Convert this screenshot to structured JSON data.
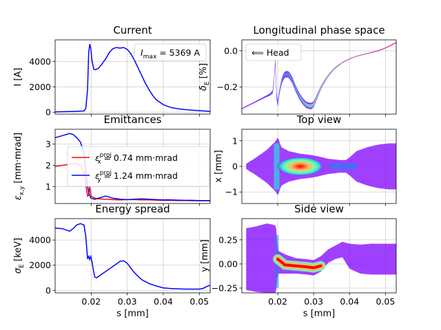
{
  "figure": {
    "background": "#ffffff"
  },
  "chart_data": [
    {
      "id": "current",
      "type": "line",
      "title": "Current",
      "ylabel": "I [A]",
      "xlim": [
        0.01,
        0.053
      ],
      "ylim": [
        -150,
        5700
      ],
      "yticks": [
        0,
        2000,
        4000
      ],
      "ytick_labels": [
        "0",
        "2000",
        "4000"
      ],
      "xticks": [
        0.02,
        0.03,
        0.04,
        0.05
      ],
      "show_xticklabels": false,
      "grid": true,
      "annotation": {
        "text": "I_max = 5369 A",
        "position": "top-right"
      },
      "series": [
        {
          "color": "#0000ff",
          "x": [
            0.01,
            0.015,
            0.018,
            0.0185,
            0.019,
            0.0193,
            0.0196,
            0.0199,
            0.0202,
            0.0207,
            0.0212,
            0.022,
            0.023,
            0.024,
            0.025,
            0.026,
            0.027,
            0.028,
            0.029,
            0.03,
            0.031,
            0.032,
            0.033,
            0.034,
            0.035,
            0.036,
            0.037,
            0.038,
            0.04,
            0.042,
            0.044,
            0.046,
            0.048,
            0.05,
            0.052,
            0.053
          ],
          "y": [
            30,
            60,
            100,
            300,
            1800,
            4700,
            5369,
            5000,
            4100,
            3400,
            3350,
            3450,
            3800,
            4200,
            4700,
            5000,
            5100,
            5050,
            5100,
            4950,
            4600,
            4100,
            3500,
            2900,
            2300,
            1800,
            1350,
            1000,
            600,
            380,
            280,
            210,
            160,
            120,
            90,
            70
          ]
        }
      ]
    },
    {
      "id": "longitudinal",
      "type": "scatter",
      "title": "Longitudinal phase space",
      "ylabel": "δ_E [%]",
      "xlim": [
        0.01,
        0.053
      ],
      "ylim": [
        -0.35,
        0.06
      ],
      "yticks": [
        0.0,
        -0.2
      ],
      "ytick_labels": [
        "0.0",
        "−0.2"
      ],
      "xticks": [
        0.02,
        0.03,
        0.04,
        0.05
      ],
      "show_xticklabels": false,
      "grid": true,
      "legend": {
        "entries": [
          "⟸ Head"
        ],
        "position": "top-left"
      },
      "series": [
        {
          "colormap": "rainbow",
          "x": [
            0.01,
            0.013,
            0.016,
            0.018,
            0.0188,
            0.0193,
            0.0197,
            0.02,
            0.0205,
            0.0212,
            0.022,
            0.023,
            0.024,
            0.025,
            0.026,
            0.027,
            0.028,
            0.029,
            0.0295,
            0.03,
            0.0305,
            0.031,
            0.032,
            0.033,
            0.034,
            0.035,
            0.036,
            0.037,
            0.038,
            0.04,
            0.042,
            0.044,
            0.046,
            0.048,
            0.05,
            0.052,
            0.053
          ],
          "y": [
            -0.32,
            -0.29,
            -0.26,
            -0.24,
            -0.22,
            -0.05,
            -0.26,
            -0.3,
            -0.22,
            -0.16,
            -0.13,
            -0.13,
            -0.16,
            -0.21,
            -0.25,
            -0.28,
            -0.3,
            -0.305,
            -0.305,
            -0.295,
            -0.275,
            -0.25,
            -0.205,
            -0.17,
            -0.14,
            -0.115,
            -0.095,
            -0.08,
            -0.065,
            -0.045,
            -0.03,
            -0.02,
            -0.01,
            0.0,
            0.015,
            0.035,
            0.045
          ],
          "band_width": [
            0.005,
            0.006,
            0.008,
            0.012,
            0.02,
            0.04,
            0.04,
            0.03,
            0.025,
            0.03,
            0.035,
            0.035,
            0.035,
            0.035,
            0.035,
            0.035,
            0.035,
            0.035,
            0.035,
            0.03,
            0.028,
            0.025,
            0.02,
            0.015,
            0.012,
            0.01,
            0.009,
            0.008,
            0.007,
            0.006,
            0.005,
            0.005,
            0.005,
            0.005,
            0.005,
            0.005,
            0.005
          ]
        }
      ]
    },
    {
      "id": "emittances",
      "type": "line",
      "title": "Emittances",
      "ylabel": "ε_x,y [mm·mrad]",
      "xlim": [
        0.01,
        0.053
      ],
      "ylim": [
        0.2,
        3.7
      ],
      "yticks": [
        1,
        2,
        3
      ],
      "ytick_labels": [
        "1",
        "2",
        "3"
      ],
      "xticks": [
        0.02,
        0.03,
        0.04,
        0.05
      ],
      "show_xticklabels": false,
      "grid": true,
      "legend": {
        "position": "center-left",
        "entries": [
          "ε_x^proj = 0.74 mm·mrad",
          "ε_y^proj = 1.24 mm·mrad"
        ]
      },
      "series": [
        {
          "name": "ε_x^proj = 0.74 mm·mrad",
          "color": "#ff0000",
          "x": [
            0.01,
            0.012,
            0.014,
            0.016,
            0.017,
            0.018,
            0.0185,
            0.019,
            0.0193,
            0.0196,
            0.02,
            0.021,
            0.022,
            0.024,
            0.026,
            0.028,
            0.03,
            0.032,
            0.034,
            0.036,
            0.038,
            0.04,
            0.042,
            0.044,
            0.046,
            0.048,
            0.05,
            0.052,
            0.053
          ],
          "y": [
            1.95,
            2.0,
            2.05,
            2.1,
            2.0,
            1.7,
            1.1,
            0.55,
            0.6,
            1.0,
            0.55,
            0.45,
            0.42,
            0.4,
            0.38,
            0.37,
            0.38,
            0.38,
            0.37,
            0.37,
            0.36,
            0.35,
            0.35,
            0.34,
            0.34,
            0.33,
            0.33,
            0.33,
            0.32
          ]
        },
        {
          "name": "ε_y^proj = 1.24 mm·mrad",
          "color": "#0000ff",
          "x": [
            0.01,
            0.012,
            0.014,
            0.015,
            0.016,
            0.017,
            0.018,
            0.0185,
            0.019,
            0.0195,
            0.02,
            0.021,
            0.022,
            0.024,
            0.026,
            0.028,
            0.03,
            0.032,
            0.034,
            0.036,
            0.038,
            0.04,
            0.042,
            0.044,
            0.046,
            0.048,
            0.05,
            0.052,
            0.053
          ],
          "y": [
            3.3,
            3.4,
            3.5,
            3.45,
            3.3,
            3.1,
            2.6,
            1.8,
            1.0,
            0.6,
            0.45,
            0.4,
            0.45,
            0.55,
            0.45,
            0.4,
            0.38,
            0.4,
            0.42,
            0.4,
            0.38,
            0.37,
            0.37,
            0.36,
            0.35,
            0.35,
            0.34,
            0.34,
            0.33
          ]
        }
      ]
    },
    {
      "id": "topview",
      "type": "heatmap",
      "title": "Top view",
      "ylabel": "x [mm]",
      "xlim": [
        0.01,
        0.053
      ],
      "ylim": [
        -1.45,
        1.45
      ],
      "yticks": [
        1,
        0,
        -1
      ],
      "ytick_labels": [
        "1",
        "0",
        "−1"
      ],
      "xticks": [
        0.02,
        0.03,
        0.04,
        0.05
      ],
      "show_xticklabels": false,
      "grid": true,
      "colormap": "rainbow",
      "envelope": {
        "x": [
          0.0112,
          0.014,
          0.017,
          0.0195,
          0.02,
          0.021,
          0.023,
          0.026,
          0.029,
          0.031,
          0.034,
          0.037,
          0.039,
          0.04,
          0.042,
          0.045,
          0.048,
          0.051,
          0.053
        ],
        "half_width": [
          0.1,
          0.35,
          0.65,
          1.0,
          1.15,
          0.75,
          0.6,
          0.5,
          0.45,
          0.4,
          0.3,
          0.25,
          0.25,
          0.35,
          0.6,
          0.75,
          0.85,
          0.9,
          0.9
        ]
      },
      "core": {
        "x": [
          0.0195,
          0.033
        ],
        "half_width": 0.12
      }
    },
    {
      "id": "energy_spread",
      "type": "line",
      "title": "Energy spread",
      "ylabel": "σ_E [keV]",
      "xlabel": "s [mm]",
      "xlim": [
        0.01,
        0.053
      ],
      "ylim": [
        -200,
        5700
      ],
      "yticks": [
        0,
        2000,
        4000
      ],
      "ytick_labels": [
        "0",
        "2000",
        "4000"
      ],
      "xticks": [
        0.02,
        0.03,
        0.04,
        0.05
      ],
      "xtick_labels": [
        "0.02",
        "0.03",
        "0.04",
        "0.05"
      ],
      "show_xticklabels": true,
      "grid": true,
      "series": [
        {
          "color": "#0000ff",
          "x": [
            0.01,
            0.012,
            0.014,
            0.015,
            0.016,
            0.017,
            0.018,
            0.0185,
            0.019,
            0.0193,
            0.0196,
            0.0199,
            0.0202,
            0.0206,
            0.021,
            0.0215,
            0.022,
            0.024,
            0.026,
            0.028,
            0.029,
            0.03,
            0.032,
            0.034,
            0.036,
            0.038,
            0.04,
            0.042,
            0.044,
            0.046,
            0.048,
            0.05,
            0.051,
            0.052,
            0.053
          ],
          "y": [
            4950,
            4900,
            4700,
            4900,
            5200,
            5300,
            5200,
            4300,
            2500,
            2700,
            2450,
            2700,
            2300,
            1600,
            1050,
            1000,
            1100,
            1500,
            1900,
            2300,
            2350,
            2150,
            1400,
            850,
            550,
            350,
            200,
            150,
            120,
            100,
            100,
            100,
            150,
            300,
            400
          ]
        }
      ]
    },
    {
      "id": "sideview",
      "type": "heatmap",
      "title": "Side view",
      "ylabel": "y [mm]",
      "xlabel": "s [mm]",
      "xlim": [
        0.01,
        0.053
      ],
      "ylim": [
        -0.3,
        0.47
      ],
      "yticks": [
        0.25,
        0.0,
        -0.25
      ],
      "ytick_labels": [
        "0.25",
        "0.00",
        "−0.25"
      ],
      "xticks": [
        0.02,
        0.03,
        0.04,
        0.05
      ],
      "xtick_labels": [
        "0.02",
        "0.03",
        "0.04",
        "0.05"
      ],
      "show_xticklabels": true,
      "grid": true,
      "colormap": "rainbow",
      "envelope": {
        "x": [
          0.0112,
          0.014,
          0.017,
          0.0195,
          0.02,
          0.022,
          0.025,
          0.028,
          0.03,
          0.032,
          0.034,
          0.036,
          0.038,
          0.04,
          0.043,
          0.046,
          0.05,
          0.053
        ],
        "center": [
          0.05,
          0.05,
          0.06,
          0.05,
          0.02,
          0.0,
          -0.02,
          -0.03,
          -0.04,
          0.0,
          0.08,
          0.12,
          0.15,
          0.08,
          0.05,
          0.05,
          0.05,
          0.05
        ],
        "half_width": [
          0.32,
          0.34,
          0.36,
          0.35,
          0.12,
          0.1,
          0.08,
          0.08,
          0.08,
          0.08,
          0.07,
          0.07,
          0.08,
          0.13,
          0.15,
          0.16,
          0.16,
          0.16
        ]
      },
      "core": {
        "x": [
          0.02,
          0.022,
          0.025,
          0.028,
          0.03,
          0.032
        ],
        "y": [
          0.05,
          -0.01,
          -0.02,
          -0.03,
          -0.04,
          -0.02
        ]
      }
    }
  ]
}
